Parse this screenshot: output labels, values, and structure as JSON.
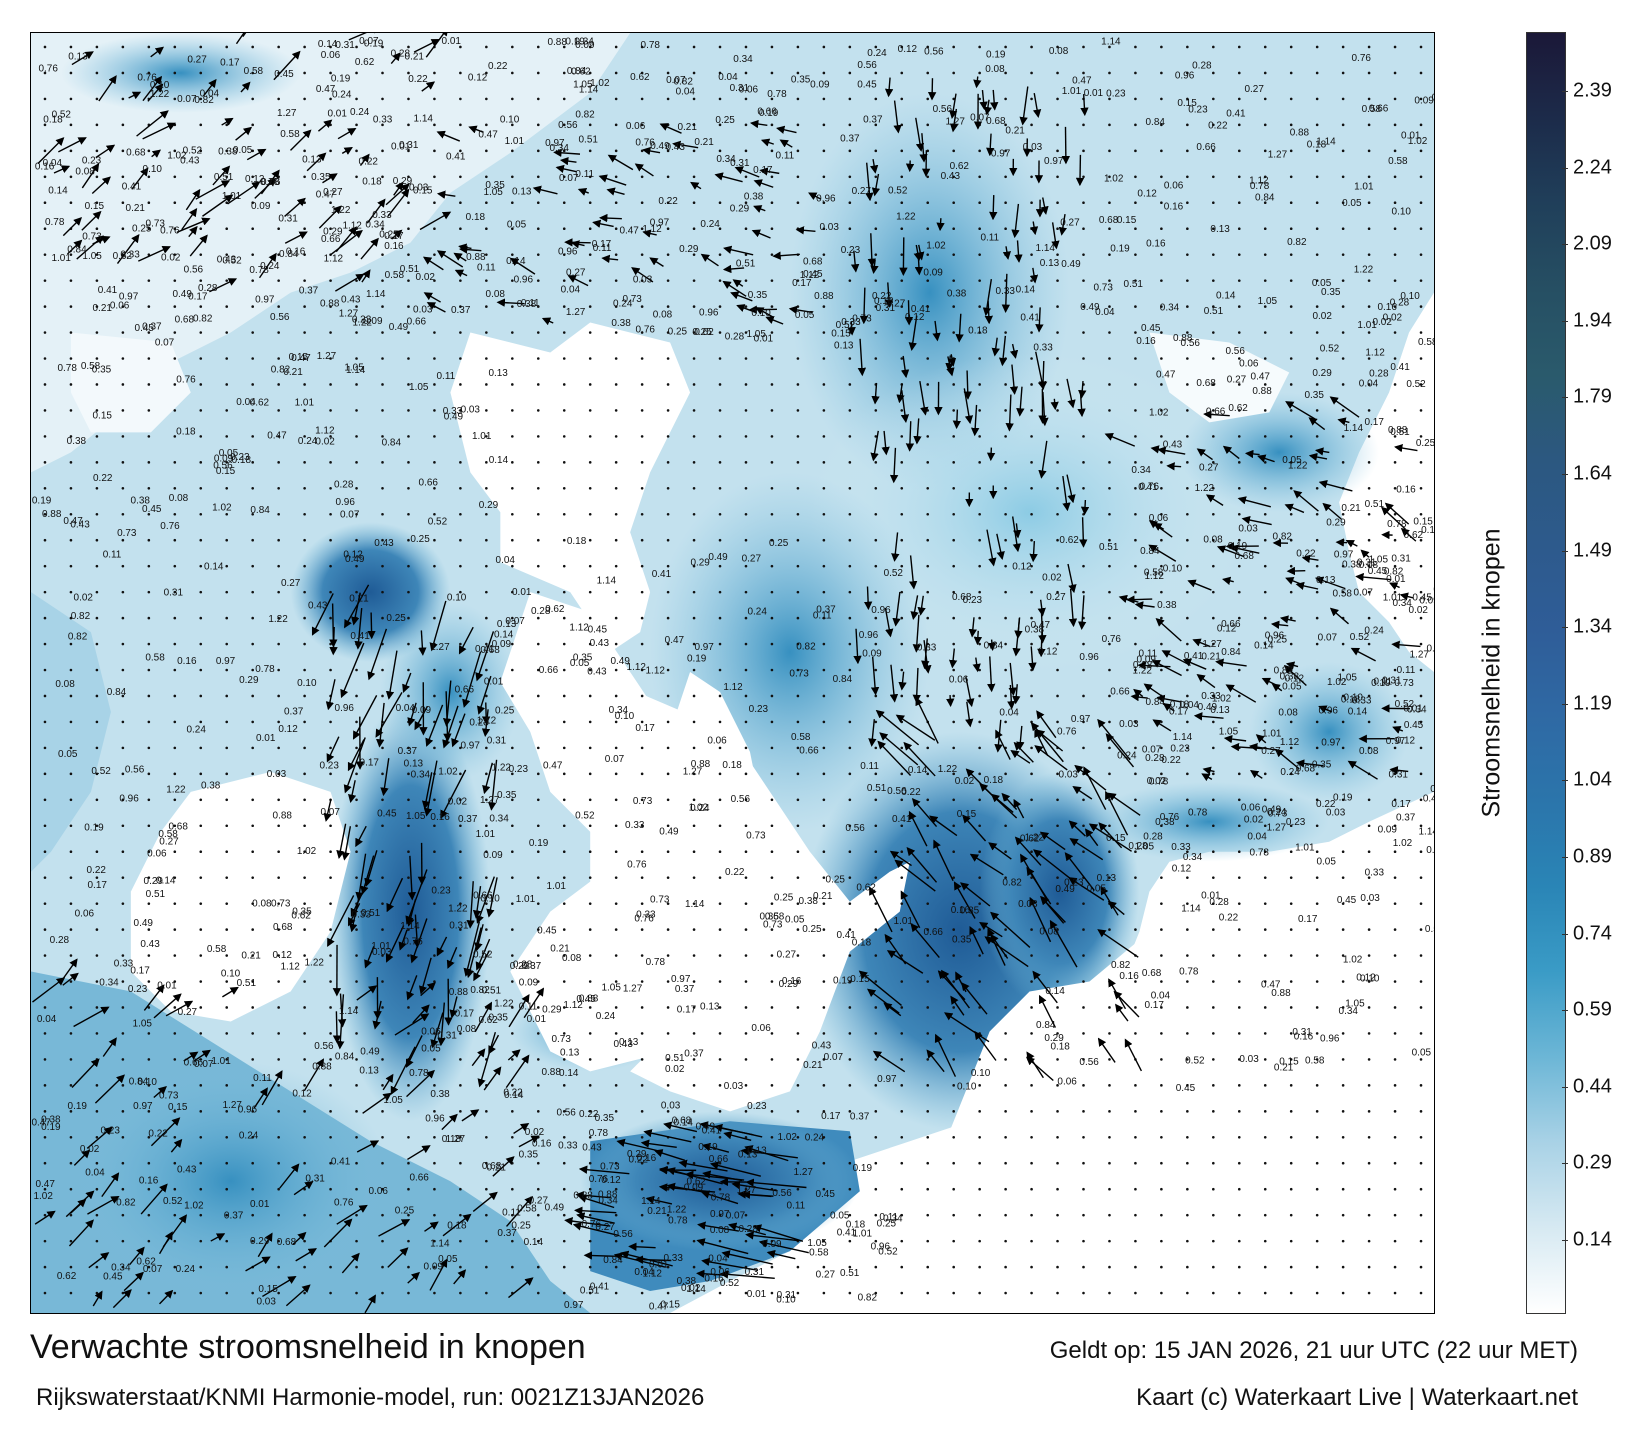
{
  "title": "Verwachte stroomsnelheid in knopen",
  "subtitle": "Rijkswaterstaat/KNMI Harmonie-model, run: 0021Z13JAN2026",
  "valid_time": "Geldt op: 15 JAN 2026, 21 uur UTC (22 uur MET)",
  "credits": "Kaart (c) Waterkaart Live | Waterkaart.net",
  "colorbar": {
    "title": "Stroomsnelheid in knopen",
    "ticks": [
      "2.39",
      "2.24",
      "2.09",
      "1.94",
      "1.79",
      "1.64",
      "1.49",
      "1.34",
      "1.19",
      "1.04",
      "0.89",
      "0.74",
      "0.59",
      "0.44",
      "0.29",
      "0.14"
    ],
    "colors": [
      "#ffffff",
      "#d6e9f2",
      "#a9d2e6",
      "#6cb6d6",
      "#3a9bc6",
      "#2a85b6",
      "#2b75ab",
      "#2f69a4",
      "#2f5d98",
      "#2d5a8c",
      "#2c5880",
      "#2a5a6c",
      "#264f63",
      "#203f5a",
      "#1c2b4a",
      "#1b1838"
    ]
  },
  "value_labels": [
    "0.18",
    "0.15",
    "0.16",
    "0.21",
    "0.28",
    "0.37",
    "0.19",
    "0.17",
    "0.08",
    "0.09",
    "0.11",
    "0.12",
    "0.14",
    "0.22",
    "0.24",
    "0.29",
    "0.41",
    "0.34",
    "0.45",
    "0.58",
    "0.56",
    "0.62",
    "0.49",
    "0.51",
    "0.76",
    "0.66",
    "0.82",
    "0.88",
    "0.97",
    "1.02",
    "1.05",
    "1.14",
    "1.12",
    "1.22",
    "1.27",
    "1.01",
    "0.96",
    "0.84",
    "0.78",
    "0.73",
    "0.68",
    "0.31",
    "0.33",
    "0.38",
    "0.43",
    "0.27",
    "0.25",
    "0.23",
    "0.13",
    "0.06",
    "0.05",
    "0.07",
    "0.04",
    "0.03",
    "0.02",
    "0.01",
    "0.10",
    "0.35",
    "0.47",
    "0.52"
  ]
}
